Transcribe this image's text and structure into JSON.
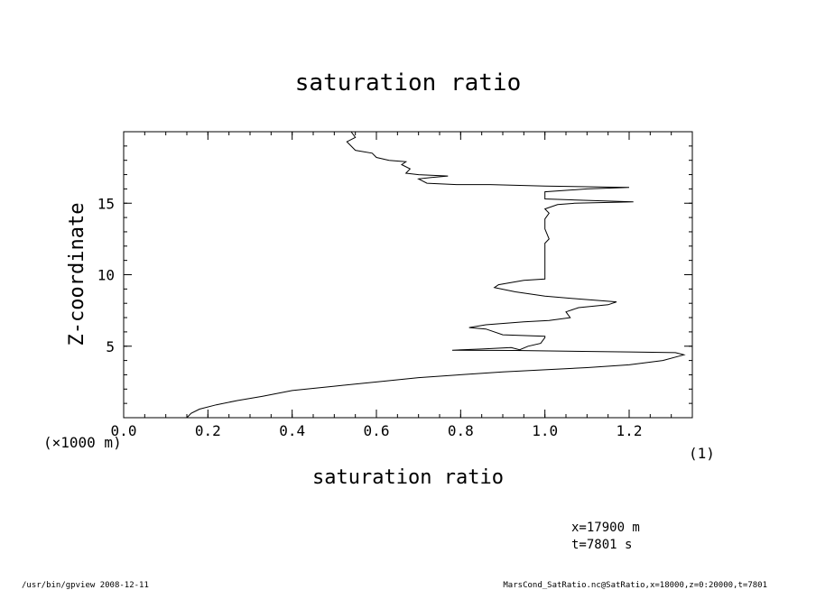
{
  "chart_data": {
    "type": "line",
    "title": "saturation ratio",
    "xlabel": "saturation ratio",
    "ylabel": "Z-coordinate",
    "x_unit": "(1)",
    "y_unit": "(×1000 m)",
    "xlim": [
      0.0,
      1.35
    ],
    "ylim": [
      0,
      20
    ],
    "x_ticks": [
      "0.0",
      "0.2",
      "0.4",
      "0.6",
      "0.8",
      "1.0",
      "1.2"
    ],
    "y_ticks": [
      "5",
      "10",
      "15"
    ],
    "grid": false,
    "series": [
      {
        "points": [
          [
            0.15,
            0.0
          ],
          [
            0.16,
            0.3
          ],
          [
            0.18,
            0.6
          ],
          [
            0.22,
            0.9
          ],
          [
            0.27,
            1.2
          ],
          [
            0.33,
            1.5
          ],
          [
            0.4,
            1.9
          ],
          [
            0.5,
            2.2
          ],
          [
            0.6,
            2.5
          ],
          [
            0.7,
            2.8
          ],
          [
            0.8,
            3.0
          ],
          [
            0.9,
            3.2
          ],
          [
            1.0,
            3.35
          ],
          [
            1.1,
            3.5
          ],
          [
            1.2,
            3.7
          ],
          [
            1.28,
            4.0
          ],
          [
            1.33,
            4.4
          ],
          [
            1.31,
            4.55
          ],
          [
            1.2,
            4.6
          ],
          [
            1.05,
            4.65
          ],
          [
            0.93,
            4.7
          ],
          [
            0.78,
            4.72
          ],
          [
            0.85,
            4.8
          ],
          [
            0.92,
            4.9
          ],
          [
            0.94,
            4.75
          ],
          [
            0.96,
            5.0
          ],
          [
            0.99,
            5.2
          ],
          [
            1.0,
            5.6
          ],
          [
            1.0,
            5.7
          ],
          [
            0.9,
            5.8
          ],
          [
            0.86,
            6.2
          ],
          [
            0.82,
            6.3
          ],
          [
            0.86,
            6.5
          ],
          [
            0.95,
            6.7
          ],
          [
            1.01,
            6.8
          ],
          [
            1.06,
            7.0
          ],
          [
            1.05,
            7.4
          ],
          [
            1.08,
            7.7
          ],
          [
            1.15,
            7.9
          ],
          [
            1.17,
            8.1
          ],
          [
            1.08,
            8.3
          ],
          [
            1.0,
            8.5
          ],
          [
            0.93,
            8.8
          ],
          [
            0.88,
            9.1
          ],
          [
            0.89,
            9.3
          ],
          [
            0.95,
            9.6
          ],
          [
            1.0,
            9.7
          ],
          [
            1.0,
            10.5
          ],
          [
            1.0,
            11.5
          ],
          [
            1.0,
            12.2
          ],
          [
            1.01,
            12.5
          ],
          [
            1.0,
            13.2
          ],
          [
            1.0,
            13.6
          ],
          [
            1.0,
            13.9
          ],
          [
            1.01,
            14.3
          ],
          [
            1.0,
            14.6
          ],
          [
            1.03,
            14.9
          ],
          [
            1.07,
            15.0
          ],
          [
            1.21,
            15.1
          ],
          [
            1.1,
            15.2
          ],
          [
            1.0,
            15.3
          ],
          [
            1.0,
            15.8
          ],
          [
            1.1,
            16.0
          ],
          [
            1.2,
            16.1
          ],
          [
            1.0,
            16.2
          ],
          [
            0.87,
            16.3
          ],
          [
            0.79,
            16.3
          ],
          [
            0.72,
            16.4
          ],
          [
            0.7,
            16.7
          ],
          [
            0.73,
            16.8
          ],
          [
            0.77,
            16.9
          ],
          [
            0.7,
            17.0
          ],
          [
            0.67,
            17.1
          ],
          [
            0.68,
            17.4
          ],
          [
            0.66,
            17.7
          ],
          [
            0.67,
            17.9
          ],
          [
            0.63,
            18.0
          ],
          [
            0.6,
            18.2
          ],
          [
            0.59,
            18.5
          ],
          [
            0.55,
            18.7
          ],
          [
            0.54,
            19.0
          ],
          [
            0.53,
            19.3
          ],
          [
            0.55,
            19.6
          ],
          [
            0.54,
            20.0
          ]
        ]
      }
    ]
  },
  "annotations": {
    "x_position": "x=17900  m",
    "t_time": "t=7801  s"
  },
  "footer": {
    "left": "/usr/bin/gpview   2008-12-11",
    "right": "MarsCond_SatRatio.nc@SatRatio,x=18000,z=0:20000,t=7801"
  }
}
